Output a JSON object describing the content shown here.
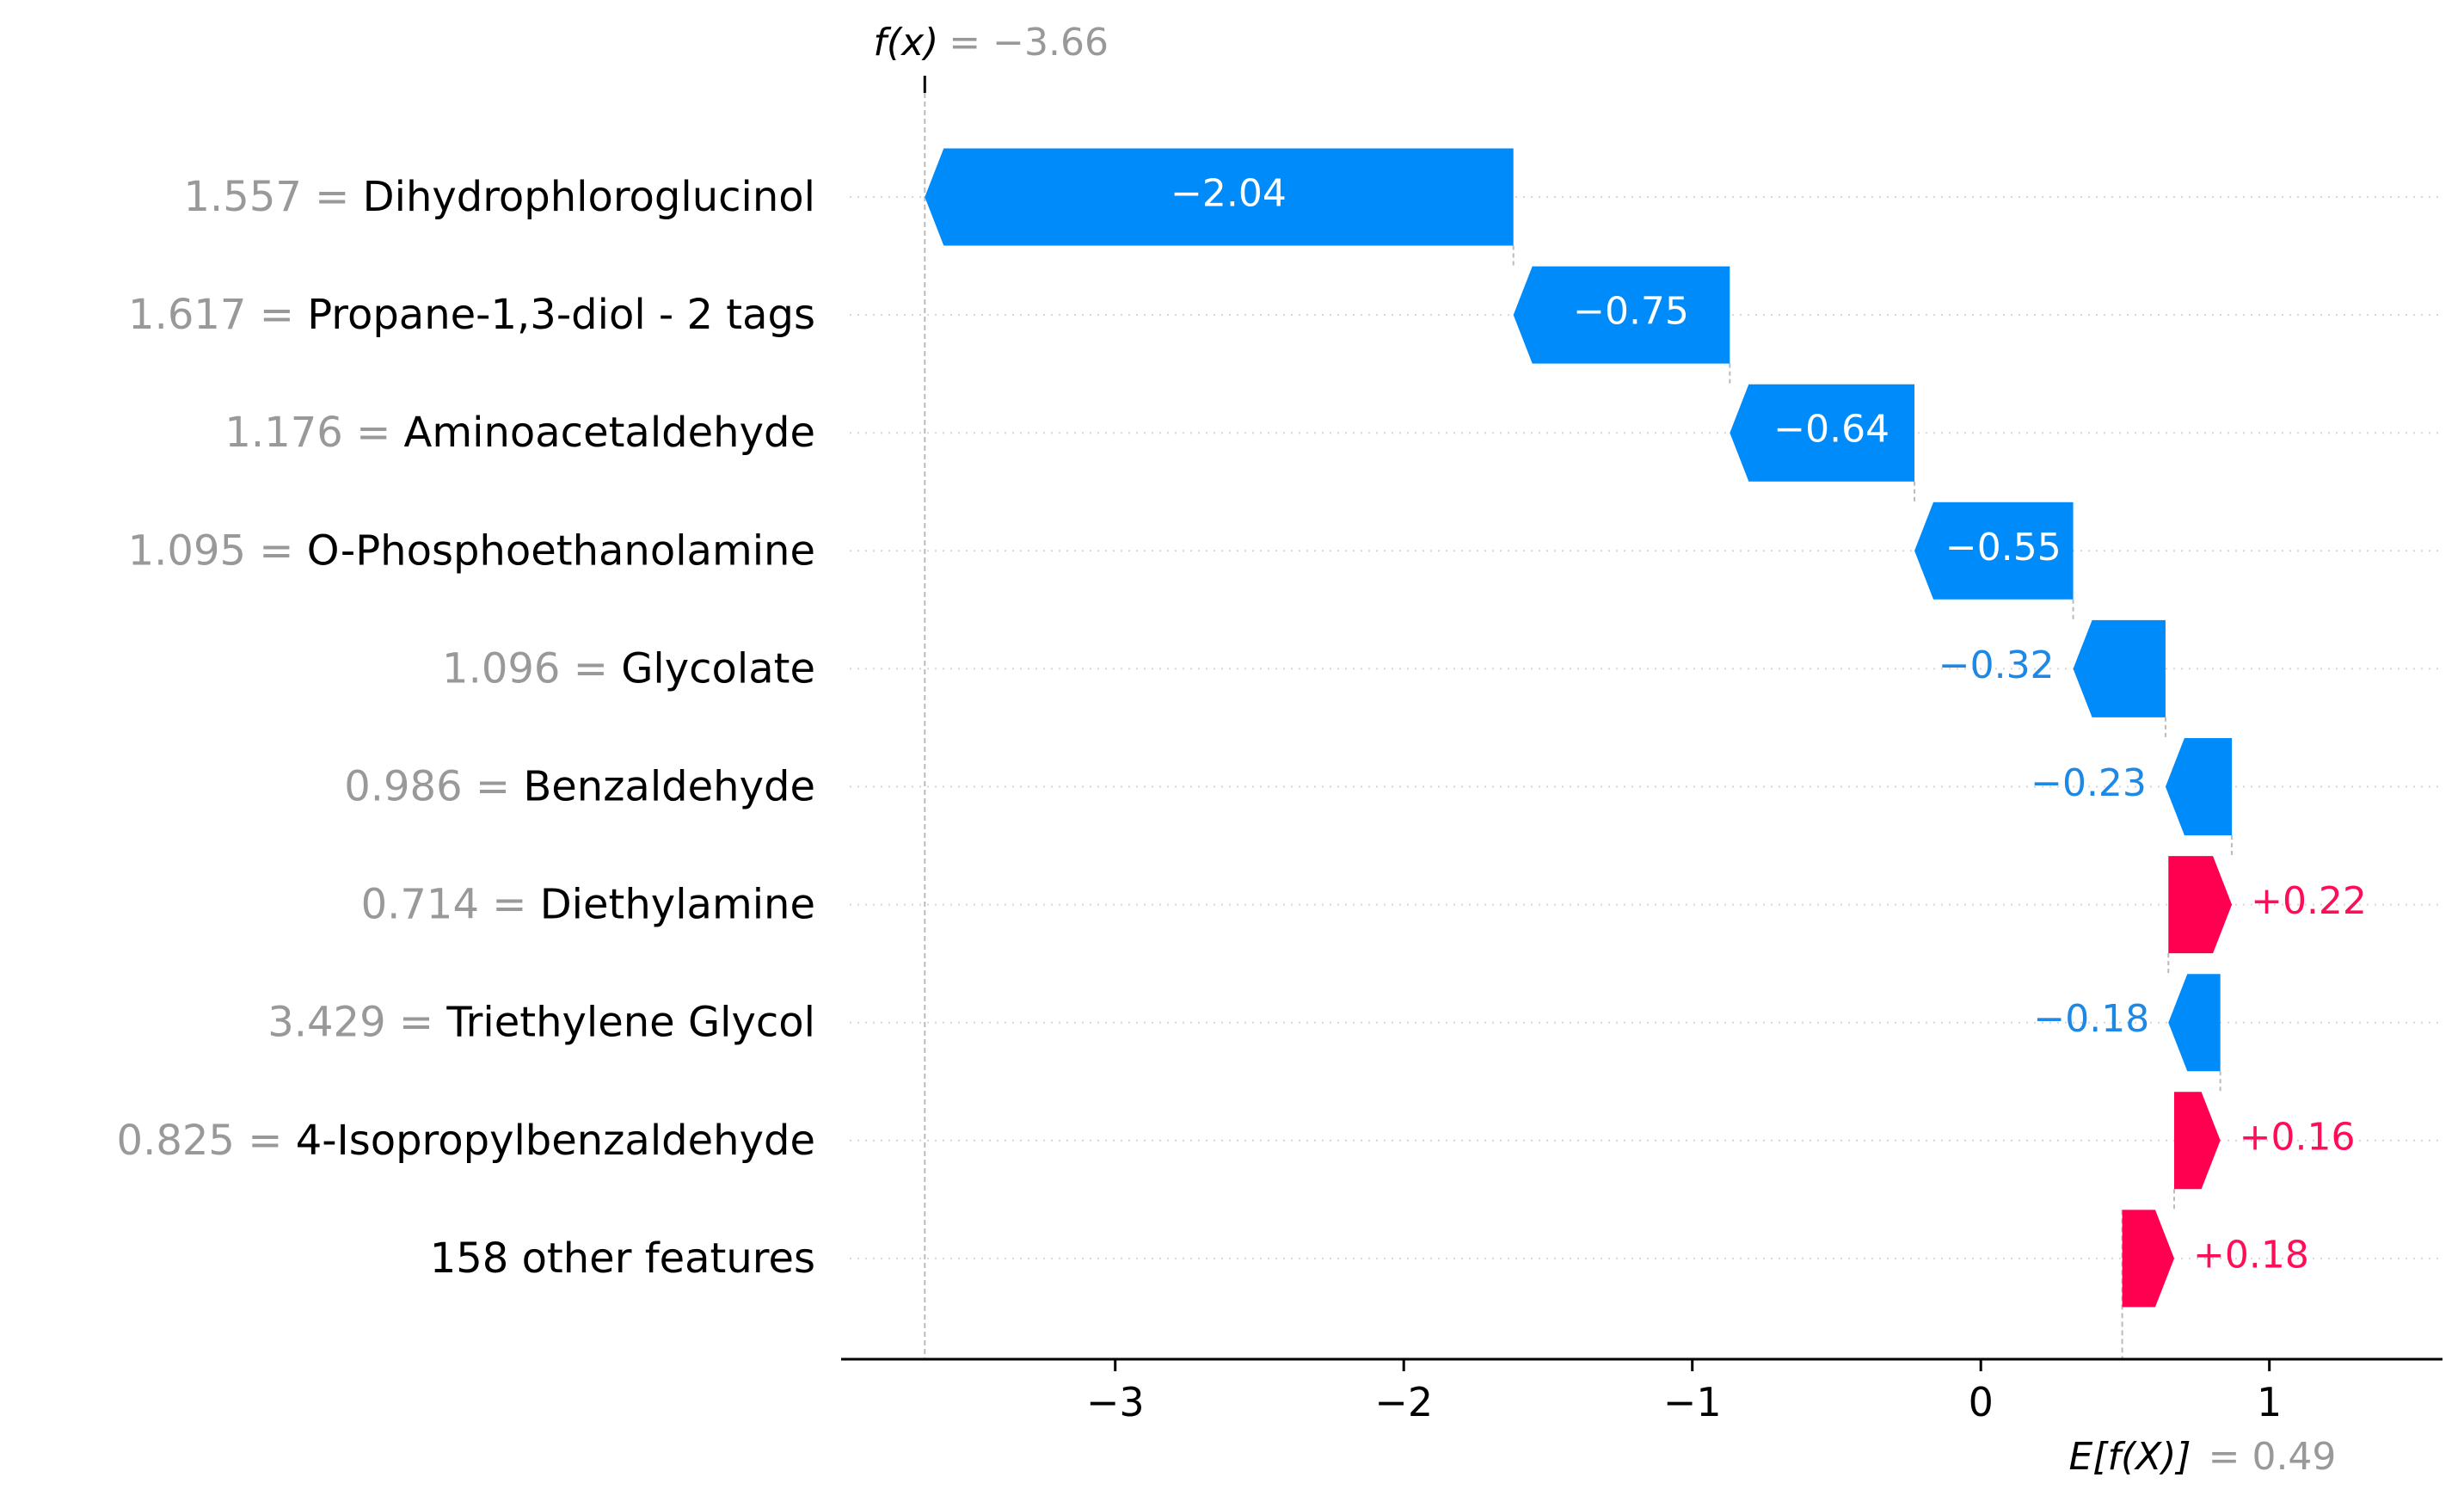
{
  "chart_data": {
    "type": "waterfall",
    "fx_label": "f(x)",
    "fx_value_text": "= −3.66",
    "fx_value": -3.66,
    "base_label": "E[f(X)]",
    "base_value_text": "= 0.49",
    "base_value": 0.49,
    "xlim": [
      -3.95,
      1.6
    ],
    "xticks": [
      -3,
      -2,
      -1,
      0,
      1
    ],
    "xtick_labels": [
      "−3",
      "−2",
      "−1",
      "0",
      "1"
    ],
    "colors": {
      "negative": "#008bfb",
      "positive": "#ff0051",
      "label_neg": "#1e88e5",
      "label_pos": "#ff0d57"
    },
    "features": [
      {
        "value": "1.557",
        "eq": "=",
        "name": "Dihydrophloroglucinol",
        "contribution": -2.04,
        "label": "−2.04",
        "start": -1.62,
        "end": -3.66
      },
      {
        "value": "1.617",
        "eq": "=",
        "name": "Propane-1,3-diol - 2 tags",
        "contribution": -0.75,
        "label": "−0.75",
        "start": -0.87,
        "end": -1.62
      },
      {
        "value": "1.176",
        "eq": "=",
        "name": "Aminoacetaldehyde",
        "contribution": -0.64,
        "label": "−0.64",
        "start": -0.23,
        "end": -0.87
      },
      {
        "value": "1.095",
        "eq": "=",
        "name": "O-Phosphoethanolamine",
        "contribution": -0.55,
        "label": "−0.55",
        "start": 0.32,
        "end": -0.23
      },
      {
        "value": "1.096",
        "eq": "=",
        "name": "Glycolate",
        "contribution": -0.32,
        "label": "−0.32",
        "start": 0.64,
        "end": 0.32
      },
      {
        "value": "0.986",
        "eq": "=",
        "name": "Benzaldehyde",
        "contribution": -0.23,
        "label": "−0.23",
        "start": 0.87,
        "end": 0.64
      },
      {
        "value": "0.714",
        "eq": "=",
        "name": "Diethylamine",
        "contribution": 0.22,
        "label": "+0.22",
        "start": 0.65,
        "end": 0.87
      },
      {
        "value": "3.429",
        "eq": "=",
        "name": "Triethylene Glycol",
        "contribution": -0.18,
        "label": "−0.18",
        "start": 0.83,
        "end": 0.65
      },
      {
        "value": "0.825",
        "eq": "=",
        "name": "4-Isopropylbenzaldehyde",
        "contribution": 0.16,
        "label": "+0.16",
        "start": 0.67,
        "end": 0.83
      },
      {
        "value": "",
        "eq": "",
        "name": "158 other features",
        "contribution": 0.18,
        "label": "+0.18",
        "start": 0.49,
        "end": 0.67
      }
    ]
  }
}
